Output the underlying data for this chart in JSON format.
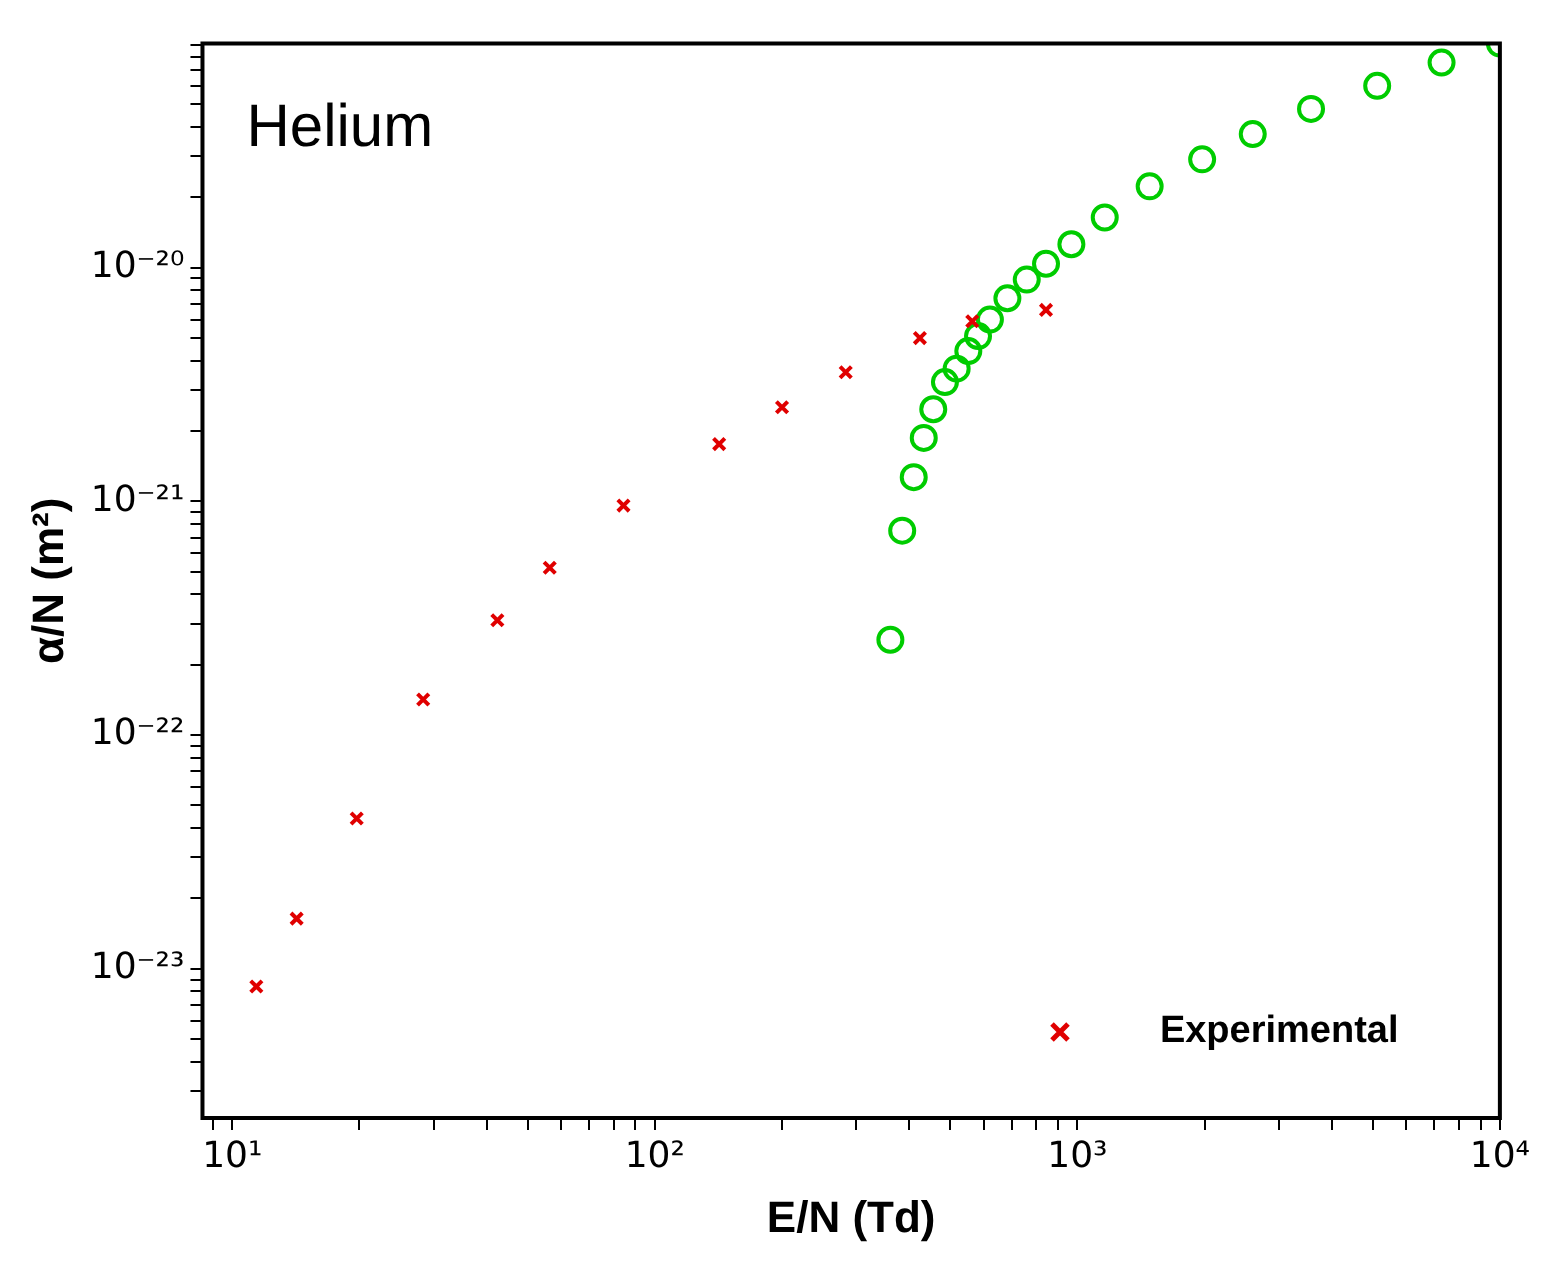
{
  "chart_data": {
    "type": "scatter",
    "xlabel": "E/N (Td)",
    "ylabel": "α/N (m²)",
    "annotations": [
      "Helium"
    ],
    "log": "xy",
    "grid": false,
    "legend": "bottom right",
    "xlim": [
      8.5,
      10000
    ],
    "ylim": [
      2.3e-24,
      9.1e-20
    ],
    "xticks": [
      {
        "value": 9,
        "label": null
      },
      {
        "value": 10,
        "label": "10¹"
      },
      {
        "value": 20,
        "label": null
      },
      {
        "value": 30,
        "label": null
      },
      {
        "value": 40,
        "label": null
      },
      {
        "value": 50,
        "label": null
      },
      {
        "value": 60,
        "label": null
      },
      {
        "value": 70,
        "label": null
      },
      {
        "value": 80,
        "label": null
      },
      {
        "value": 90,
        "label": null
      },
      {
        "value": 100,
        "label": "10²"
      },
      {
        "value": 200,
        "label": null
      },
      {
        "value": 300,
        "label": null
      },
      {
        "value": 400,
        "label": null
      },
      {
        "value": 500,
        "label": null
      },
      {
        "value": 600,
        "label": null
      },
      {
        "value": 700,
        "label": null
      },
      {
        "value": 800,
        "label": null
      },
      {
        "value": 900,
        "label": null
      },
      {
        "value": 1000,
        "label": "10³"
      },
      {
        "value": 2000,
        "label": null
      },
      {
        "value": 3000,
        "label": null
      },
      {
        "value": 4000,
        "label": null
      },
      {
        "value": 5000,
        "label": null
      },
      {
        "value": 6000,
        "label": null
      },
      {
        "value": 7000,
        "label": null
      },
      {
        "value": 8000,
        "label": null
      },
      {
        "value": 9000,
        "label": null
      },
      {
        "value": 10000,
        "label": "10⁴"
      }
    ],
    "yticks": [
      {
        "value": 3e-24,
        "label": null
      },
      {
        "value": 4e-24,
        "label": null
      },
      {
        "value": 5e-24,
        "label": null
      },
      {
        "value": 6e-24,
        "label": null
      },
      {
        "value": 7e-24,
        "label": null
      },
      {
        "value": 8e-24,
        "label": null
      },
      {
        "value": 9e-24,
        "label": null
      },
      {
        "value": 1e-23,
        "label": "10⁻²³"
      },
      {
        "value": 2e-23,
        "label": null
      },
      {
        "value": 3e-23,
        "label": null
      },
      {
        "value": 4e-23,
        "label": null
      },
      {
        "value": 5e-23,
        "label": null
      },
      {
        "value": 6e-23,
        "label": null
      },
      {
        "value": 7e-23,
        "label": null
      },
      {
        "value": 8e-23,
        "label": null
      },
      {
        "value": 9e-23,
        "label": null
      },
      {
        "value": 1e-22,
        "label": "10⁻²²"
      },
      {
        "value": 2e-22,
        "label": null
      },
      {
        "value": 3e-22,
        "label": null
      },
      {
        "value": 4e-22,
        "label": null
      },
      {
        "value": 5e-22,
        "label": null
      },
      {
        "value": 6e-22,
        "label": null
      },
      {
        "value": 7e-22,
        "label": null
      },
      {
        "value": 8e-22,
        "label": null
      },
      {
        "value": 9e-22,
        "label": null
      },
      {
        "value": 1e-21,
        "label": "10⁻²¹"
      },
      {
        "value": 2e-21,
        "label": null
      },
      {
        "value": 3e-21,
        "label": null
      },
      {
        "value": 4e-21,
        "label": null
      },
      {
        "value": 5e-21,
        "label": null
      },
      {
        "value": 6e-21,
        "label": null
      },
      {
        "value": 7e-21,
        "label": null
      },
      {
        "value": 8e-21,
        "label": null
      },
      {
        "value": 9e-21,
        "label": null
      },
      {
        "value": 1e-20,
        "label": "10⁻²⁰"
      },
      {
        "value": 2e-20,
        "label": null
      },
      {
        "value": 3e-20,
        "label": null
      },
      {
        "value": 4e-20,
        "label": null
      },
      {
        "value": 5e-20,
        "label": null
      },
      {
        "value": 6e-20,
        "label": null
      },
      {
        "value": 7e-20,
        "label": null
      },
      {
        "value": 8e-20,
        "label": null
      },
      {
        "value": 9e-20,
        "label": null
      }
    ],
    "series": [
      {
        "name": "Experimental",
        "color": "#e00000",
        "marker": "cross",
        "x": [
          11.4,
          14.2,
          19.7,
          28.3,
          42.4,
          56.4,
          84.3,
          142,
          200,
          283,
          424,
          564,
          843
        ],
        "values": [
          8.4e-24,
          1.64e-23,
          4.4e-23,
          1.42e-22,
          3.1e-22,
          5.2e-22,
          9.6e-22,
          1.76e-21,
          2.53e-21,
          3.57e-21,
          5e-21,
          5.9e-21,
          6.6e-21
        ]
      },
      {
        "color": "#00cc00",
        "marker": "circle",
        "x": [
          361,
          385,
          410,
          433,
          456,
          486,
          518,
          552,
          582,
          621,
          683,
          759,
          843,
          968,
          1161,
          1483,
          1974,
          2601,
          3573,
          5124,
          7278,
          10000
        ],
        "values": [
          2.56e-22,
          7.5e-22,
          1.27e-21,
          1.87e-21,
          2.48e-21,
          3.24e-21,
          3.7e-21,
          4.4e-21,
          5.1e-21,
          6e-21,
          7.4e-21,
          8.9e-21,
          1.04e-20,
          1.26e-20,
          1.64e-20,
          2.23e-20,
          2.91e-20,
          3.73e-20,
          4.78e-20,
          6e-20,
          7.55e-20,
          9.1e-20
        ]
      }
    ]
  }
}
